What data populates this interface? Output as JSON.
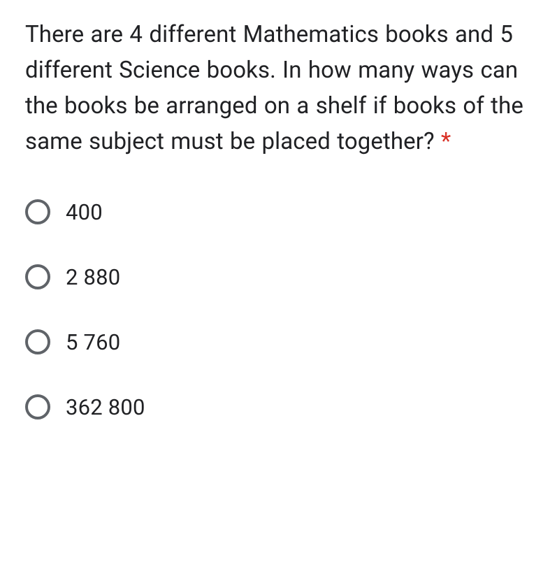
{
  "question": {
    "text": "There are 4 different Mathematics books and 5 different Science books. In how many ways can the books be arranged on a shelf if books of the same subject must be placed together? ",
    "required_marker": "*"
  },
  "options": [
    {
      "label": "400"
    },
    {
      "label": "2 880"
    },
    {
      "label": "5 760"
    },
    {
      "label": "362 800"
    }
  ],
  "colors": {
    "text": "#202124",
    "required": "#d93025",
    "radio_border": "#5f6368",
    "background": "#ffffff"
  }
}
